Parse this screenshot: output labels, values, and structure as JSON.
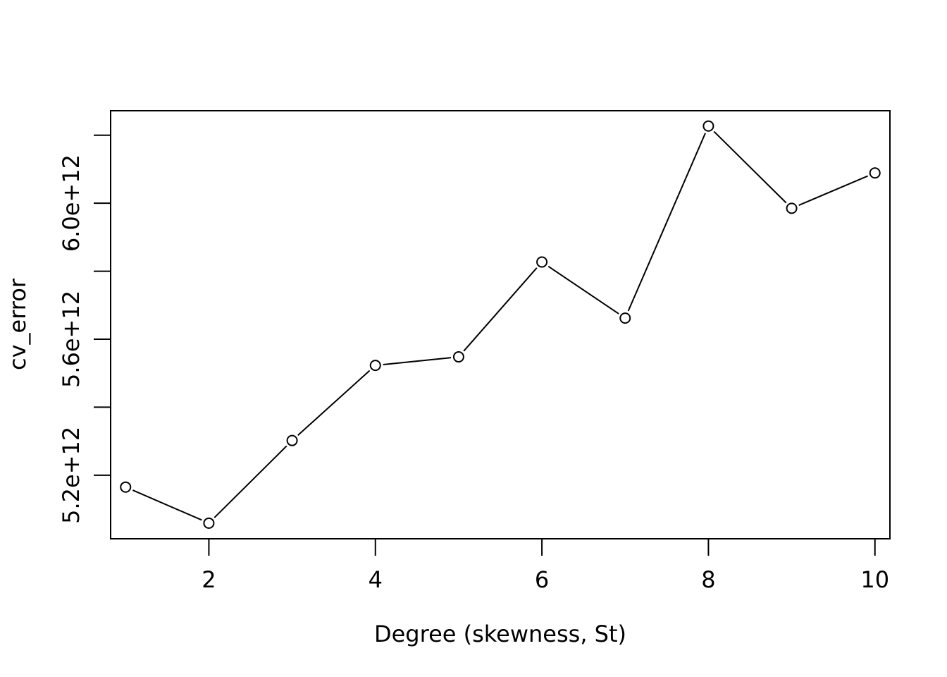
{
  "chart_data": {
    "type": "line",
    "marker": "open-circle",
    "title": "",
    "xlabel": "Degree (skewness, St)",
    "ylabel": "cv_error",
    "x": [
      1,
      2,
      3,
      4,
      5,
      6,
      7,
      8,
      9,
      10
    ],
    "series": [
      {
        "values": [
          5165000000000.0,
          5059000000000.0,
          5302000000000.0,
          5523000000000.0,
          5548000000000.0,
          5827000000000.0,
          5662000000000.0,
          6227000000000.0,
          5985000000000.0,
          6089000000000.0
        ]
      }
    ],
    "xlim": [
      0.82,
      10.18
    ],
    "ylim": [
      5013000000000.0,
      6272000000000.0
    ],
    "x_ticks": [
      2,
      4,
      6,
      8,
      10
    ],
    "x_tick_labels": [
      "2",
      "4",
      "6",
      "8",
      "10"
    ],
    "y_ticks": [
      5200000000000.0,
      5400000000000.0,
      5600000000000.0,
      5800000000000.0,
      6000000000000.0,
      6200000000000.0
    ],
    "y_tick_labels": [
      "5.2e+12",
      "",
      "5.6e+12",
      "",
      "6.0e+12",
      ""
    ],
    "grid": false,
    "legend": "none",
    "colors": {
      "line": "#000000",
      "marker_fill": "#ffffff",
      "background": "#ffffff"
    }
  }
}
